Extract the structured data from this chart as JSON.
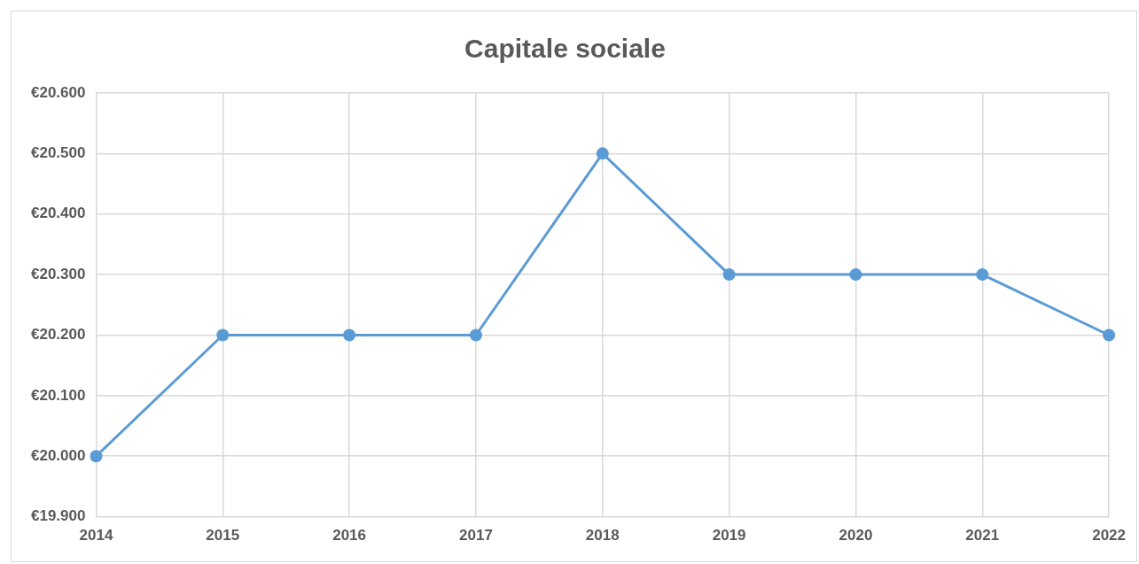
{
  "chart_data": {
    "type": "line",
    "title": "Capitale sociale",
    "categories": [
      "2014",
      "2015",
      "2016",
      "2017",
      "2018",
      "2019",
      "2020",
      "2021",
      "2022"
    ],
    "series": [
      {
        "color": "#5b9bd5",
        "values": [
          20000,
          20200,
          20200,
          20200,
          20500,
          20300,
          20300,
          20300,
          20200
        ]
      }
    ],
    "ylim": [
      19900,
      20600
    ],
    "yticks": [
      {
        "value": 19900,
        "label": "€19.900"
      },
      {
        "value": 20000,
        "label": "€20.000"
      },
      {
        "value": 20100,
        "label": "€20.100"
      },
      {
        "value": 20200,
        "label": "€20.200"
      },
      {
        "value": 20300,
        "label": "€20.300"
      },
      {
        "value": 20400,
        "label": "€20.400"
      },
      {
        "value": 20500,
        "label": "€20.500"
      },
      {
        "value": 20600,
        "label": "€20.600"
      }
    ],
    "grid": true,
    "legend": false,
    "marker": "circle",
    "line_style": "solid"
  }
}
